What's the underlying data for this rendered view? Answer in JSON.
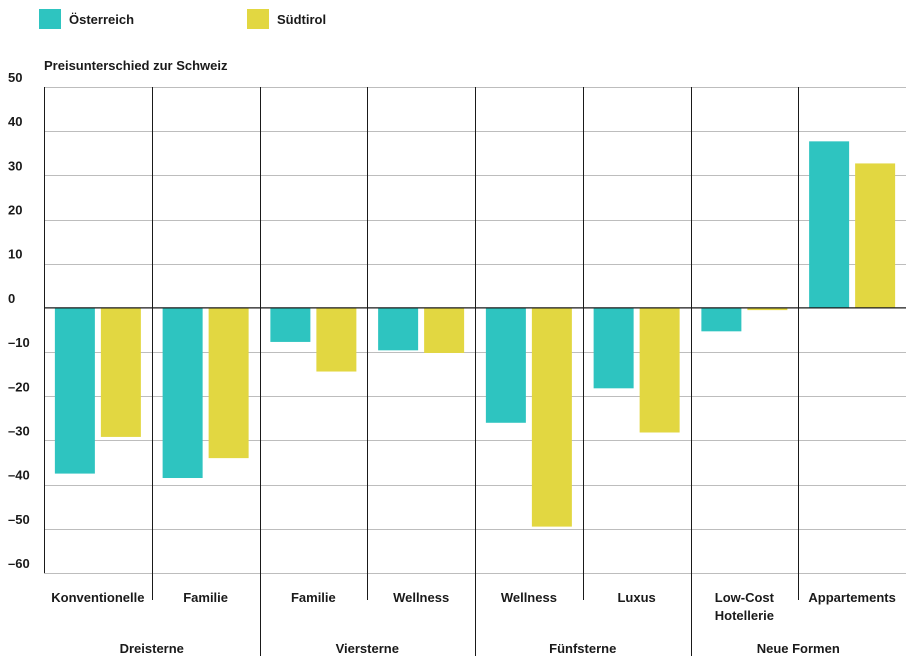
{
  "legend": [
    {
      "label": "Österreich",
      "color": "#2ec4c0"
    },
    {
      "label": "Südtirol",
      "color": "#e2d741"
    }
  ],
  "chart_data": {
    "type": "bar",
    "ylabel": "Preisunterschied zur Schweiz",
    "ylim": [
      -60,
      50
    ],
    "yticks": [
      50,
      40,
      30,
      20,
      10,
      0,
      -10,
      -20,
      -30,
      -40,
      -50,
      -60
    ],
    "ytick_labels": [
      "50",
      "40",
      "30",
      "20",
      "10",
      "0",
      "–10",
      "–20",
      "–30",
      "–40",
      "–50",
      "–60"
    ],
    "grid": true,
    "legend_position": "top-left",
    "categories": [
      {
        "label": "Konventionelle",
        "group": "Dreisterne"
      },
      {
        "label": "Familie",
        "group": "Dreisterne"
      },
      {
        "label": "Familie",
        "group": "Viersterne"
      },
      {
        "label": "Wellness",
        "group": "Viersterne"
      },
      {
        "label": "Wellness",
        "group": "Fünfsterne"
      },
      {
        "label": "Luxus",
        "group": "Fünfsterne"
      },
      {
        "label": "Low-Cost Hotellerie",
        "group": "Neue Formen"
      },
      {
        "label": "Appartements",
        "group": "Neue Formen"
      }
    ],
    "groups": [
      "Dreisterne",
      "Viersterne",
      "Fünfsterne",
      "Neue Formen"
    ],
    "series": [
      {
        "name": "Österreich",
        "color": "#2ec4c0",
        "values": [
          -37.5,
          -38.5,
          -7.7,
          -9.6,
          -26,
          -18.2,
          -5.3,
          37.7
        ]
      },
      {
        "name": "Südtirol",
        "color": "#e2d741",
        "values": [
          -29.2,
          -34,
          -14.4,
          -10.2,
          -49.5,
          -28.2,
          -0.5,
          32.7
        ]
      }
    ]
  }
}
